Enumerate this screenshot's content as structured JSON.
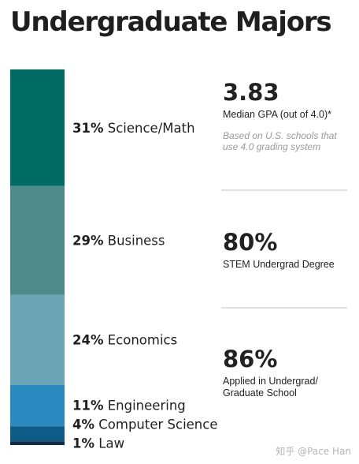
{
  "chart_data": {
    "type": "stacked-bar",
    "title": "Undergraduate Majors",
    "segments": [
      {
        "name": "Science/Math",
        "value": 31,
        "label": "31%",
        "color": "#006b62"
      },
      {
        "name": "Business",
        "value": 29,
        "label": "29%",
        "color": "#4f8a8a"
      },
      {
        "name": "Economics",
        "value": 24,
        "label": "24%",
        "color": "#6aa3b4"
      },
      {
        "name": "Engineering",
        "value": 11,
        "label": "11%",
        "color": "#2a8ac0"
      },
      {
        "name": "Computer Science",
        "value": 4,
        "label": "4%",
        "color": "#0d5c87"
      },
      {
        "name": "Law",
        "value": 1,
        "label": "1%",
        "color": "#102c44"
      }
    ]
  },
  "stats": [
    {
      "value": "3.83",
      "desc": "Median GPA (out of 4.0)*",
      "note": "Based on U.S. schools that use 4.0 grading system"
    },
    {
      "value": "80%",
      "desc": "STEM Undergrad Degree",
      "note": ""
    },
    {
      "value": "86%",
      "desc": "Applied in Undergrad/ Graduate School",
      "note": ""
    }
  ],
  "watermark": "知乎 @Pace Han"
}
